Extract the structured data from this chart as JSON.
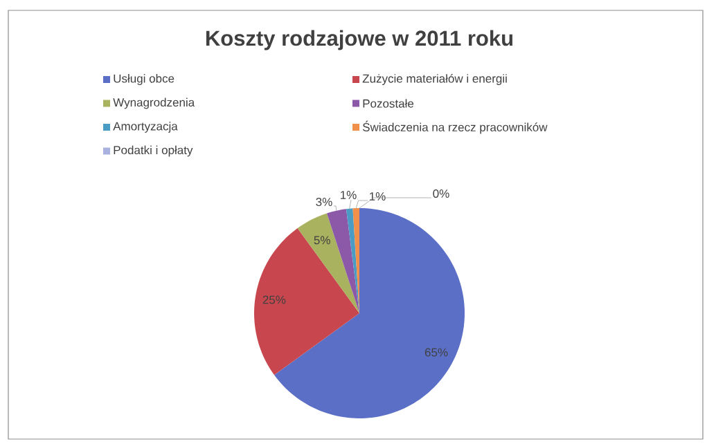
{
  "chart_data": {
    "type": "pie",
    "title": "Koszty rodzajowe  w 2011 roku",
    "categories": [
      "Usługi obce",
      "Zużycie materiałów i energii",
      "Wynagrodzenia",
      "Pozostałe",
      "Amortyzacja",
      "Świadczenia na rzecz pracowników",
      "Podatki i opłaty"
    ],
    "values": [
      65,
      25,
      5,
      3,
      1,
      1,
      0
    ],
    "value_labels": [
      "65%",
      "25%",
      "5%",
      "3%",
      "1%",
      "1%",
      "0%"
    ],
    "colors": [
      "#5b6fc6",
      "#c8474f",
      "#a9b25f",
      "#8c58a8",
      "#4b9cc4",
      "#f0904a",
      "#a9b1e0"
    ],
    "legend": "top"
  }
}
